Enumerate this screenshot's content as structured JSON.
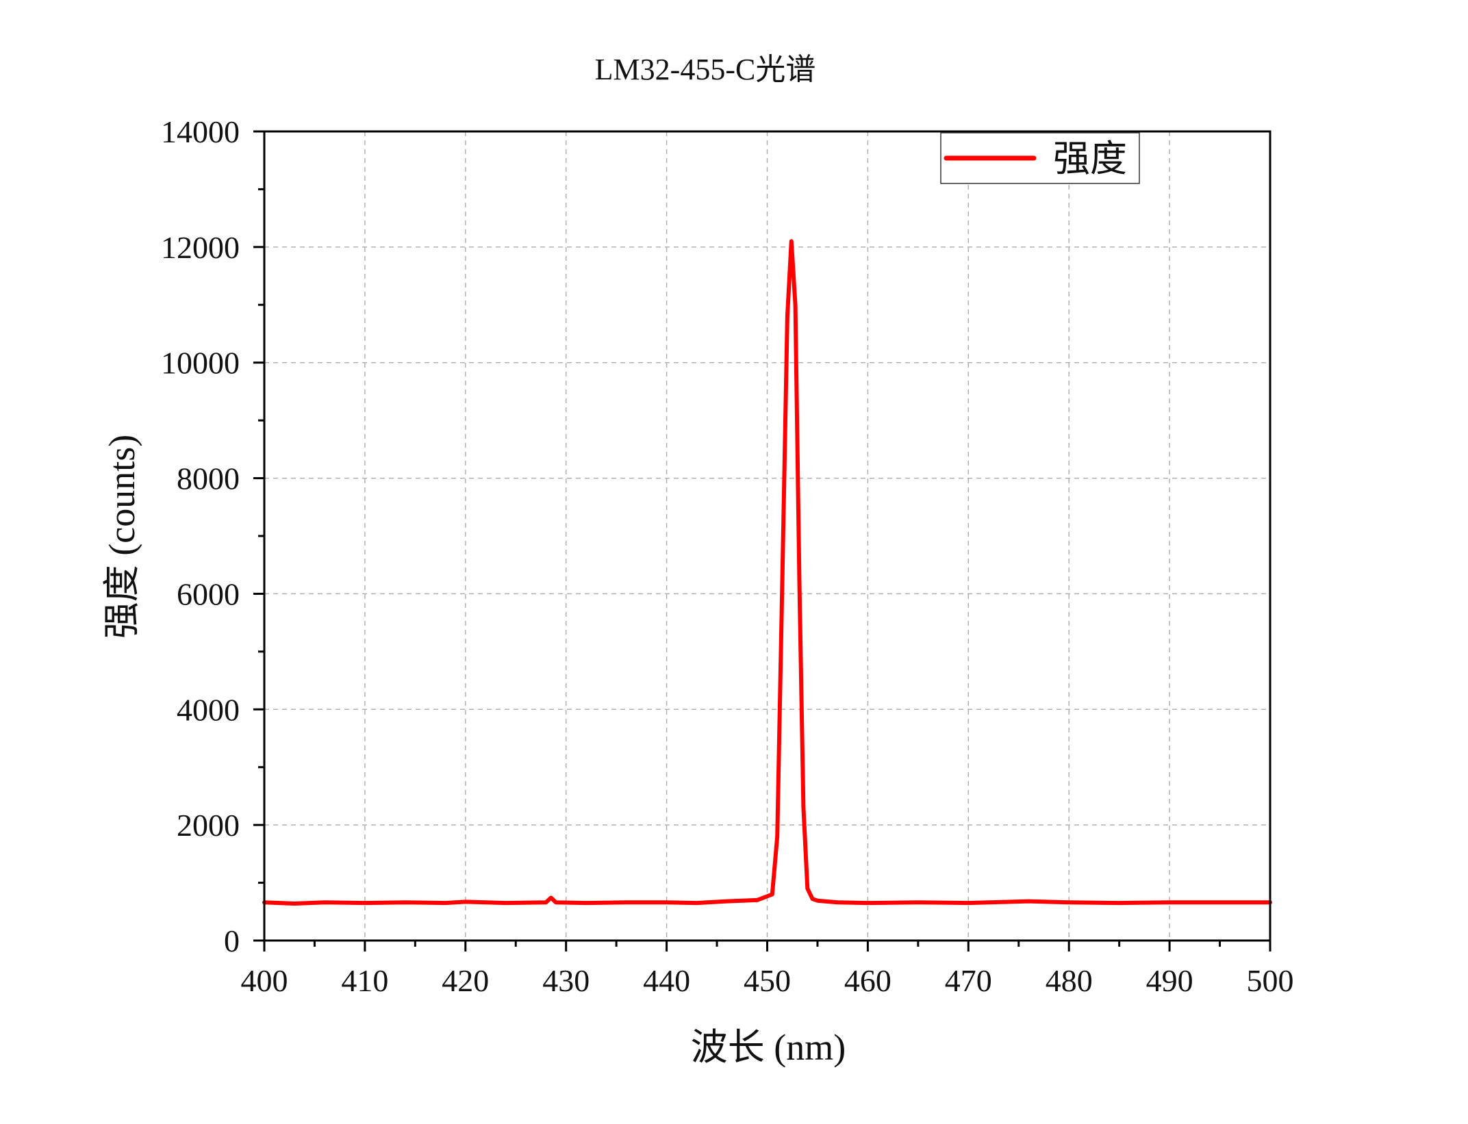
{
  "chart_data": {
    "type": "line",
    "title": "LM32-455-C光谱",
    "xlabel": "波长 (nm)",
    "ylabel": "强度 (counts)",
    "xlim": [
      400,
      500
    ],
    "ylim": [
      0,
      14000
    ],
    "x_ticks": [
      400,
      410,
      420,
      430,
      440,
      450,
      460,
      470,
      480,
      490,
      500
    ],
    "y_ticks": [
      0,
      2000,
      4000,
      6000,
      8000,
      10000,
      12000,
      14000
    ],
    "x_tick_labels": [
      "400",
      "410",
      "420",
      "430",
      "440",
      "450",
      "460",
      "470",
      "480",
      "490",
      "500"
    ],
    "y_tick_labels": [
      "0",
      "2000",
      "4000",
      "6000",
      "8000",
      "10000",
      "12000",
      "14000"
    ],
    "grid": true,
    "legend_position": "top-right",
    "series": [
      {
        "name": "强度",
        "color": "#ff0000",
        "x": [
          400,
          403,
          406,
          410,
          414,
          418,
          420,
          424,
          428,
          428.5,
          429,
          432,
          436,
          440,
          443,
          446,
          449,
          450.5,
          451,
          451.5,
          452,
          452.4,
          452.8,
          453.2,
          453.6,
          454,
          454.5,
          455,
          457,
          460,
          465,
          470,
          476,
          480,
          485,
          490,
          495,
          500
        ],
        "y": [
          660,
          640,
          660,
          650,
          660,
          650,
          670,
          650,
          660,
          740,
          660,
          650,
          660,
          660,
          650,
          680,
          700,
          800,
          1800,
          6200,
          10800,
          12100,
          11000,
          6200,
          2300,
          900,
          720,
          690,
          660,
          650,
          660,
          650,
          680,
          660,
          650,
          660,
          660,
          660
        ]
      }
    ]
  }
}
